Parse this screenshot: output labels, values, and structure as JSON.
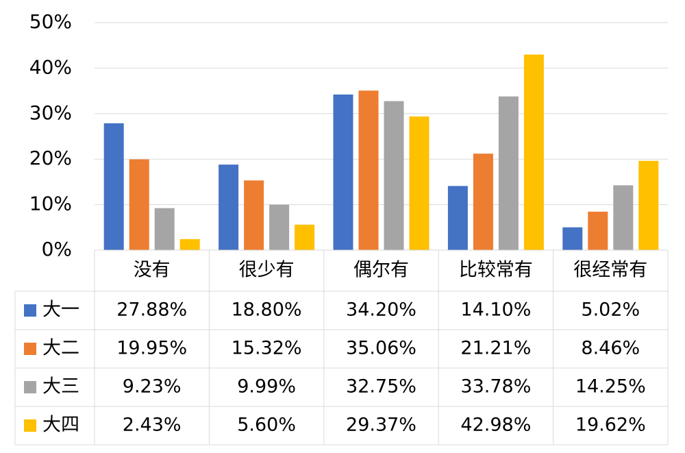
{
  "chart_data": {
    "type": "bar",
    "categories": [
      "没有",
      "很少有",
      "偶尔有",
      "比较常有",
      "很经常有"
    ],
    "series": [
      {
        "name": "大一",
        "color": "#4472c4",
        "values": [
          27.88,
          18.8,
          34.2,
          14.1,
          5.02
        ],
        "value_labels": [
          "27.88%",
          "18.80%",
          "34.20%",
          "14.10%",
          "5.02%"
        ]
      },
      {
        "name": "大二",
        "color": "#ed7d31",
        "values": [
          19.95,
          15.32,
          35.06,
          21.21,
          8.46
        ],
        "value_labels": [
          "19.95%",
          "15.32%",
          "35.06%",
          "21.21%",
          "8.46%"
        ]
      },
      {
        "name": "大三",
        "color": "#a5a5a5",
        "values": [
          9.23,
          9.99,
          32.75,
          33.78,
          14.25
        ],
        "value_labels": [
          "9.23%",
          "9.99%",
          "32.75%",
          "33.78%",
          "14.25%"
        ]
      },
      {
        "name": "大四",
        "color": "#ffc000",
        "values": [
          2.43,
          5.6,
          29.37,
          42.98,
          19.62
        ],
        "value_labels": [
          "2.43%",
          "5.60%",
          "29.37%",
          "42.98%",
          "19.62%"
        ]
      }
    ],
    "ylim": [
      0,
      50
    ],
    "yticks": [
      {
        "value": 0,
        "label": "0%"
      },
      {
        "value": 10,
        "label": "10%"
      },
      {
        "value": 20,
        "label": "20%"
      },
      {
        "value": 30,
        "label": "30%"
      },
      {
        "value": 40,
        "label": "40%"
      },
      {
        "value": 50,
        "label": "50%"
      }
    ],
    "grid": true
  }
}
